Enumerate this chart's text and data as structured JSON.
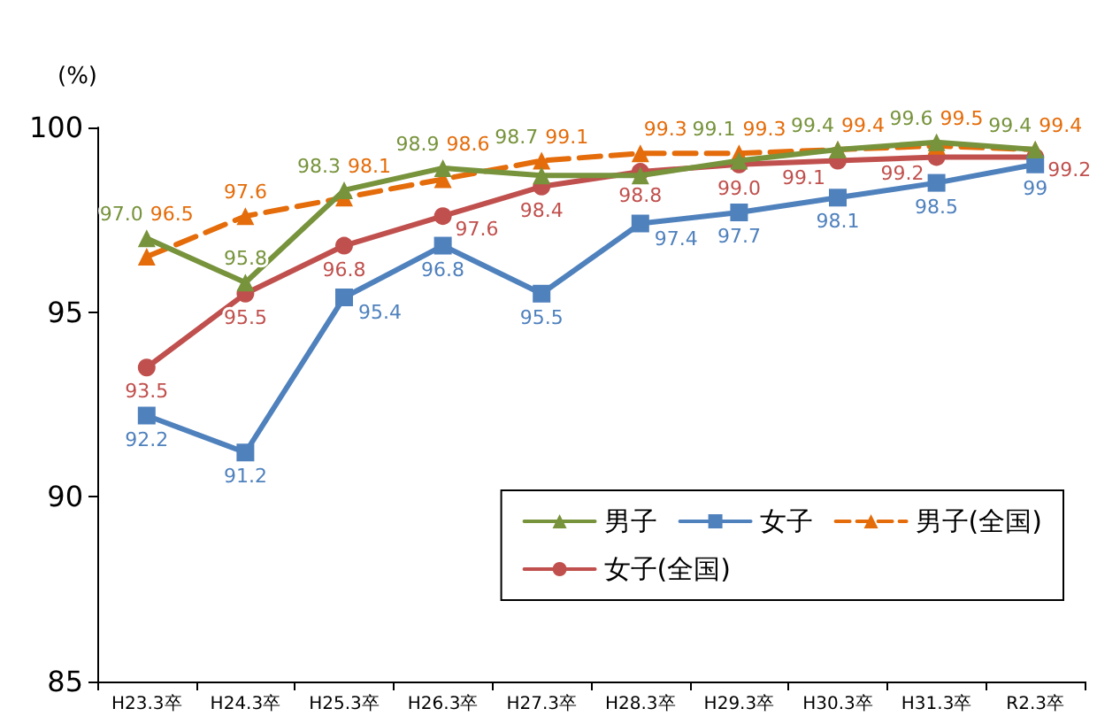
{
  "chart_data": {
    "type": "line",
    "ylabel": "(%)",
    "categories": [
      "H23.3卒",
      "H24.3卒",
      "H25.3卒",
      "H26.3卒",
      "H27.3卒",
      "H28.3卒",
      "H29.3卒",
      "H30.3卒",
      "H31.3卒",
      "R2.3卒"
    ],
    "series": [
      {
        "name": "男子",
        "color": "#77933c",
        "marker": "triangle",
        "line_style": "solid",
        "values": [
          97.0,
          95.8,
          98.3,
          98.9,
          98.7,
          98.7,
          99.1,
          99.4,
          99.6,
          99.4
        ],
        "value_labels": [
          "97.0",
          "95.8",
          "98.3",
          "98.9",
          "98.7",
          null,
          "99.1",
          "99.4",
          "99.6",
          "99.4"
        ]
      },
      {
        "name": "女子",
        "color": "#4f81bd",
        "marker": "square",
        "line_style": "solid",
        "values": [
          92.2,
          91.2,
          95.4,
          96.8,
          95.5,
          97.4,
          97.7,
          98.1,
          98.5,
          99
        ],
        "value_labels": [
          "92.2",
          "91.2",
          "95.4",
          "96.8",
          "95.5",
          "97.4",
          "97.7",
          "98.1",
          "98.5",
          "99"
        ]
      },
      {
        "name": "男子(全国)",
        "color": "#e46c0a",
        "marker": "triangle",
        "line_style": "dashed",
        "values": [
          96.5,
          97.6,
          98.1,
          98.6,
          99.1,
          99.3,
          99.3,
          99.4,
          99.5,
          99.4
        ],
        "value_labels": [
          "96.5",
          "97.6",
          "98.1",
          "98.6",
          "99.1",
          "99.3",
          "99.3",
          "99.4",
          "99.5",
          "99.4"
        ]
      },
      {
        "name": "女子(全国)",
        "color": "#c0504d",
        "marker": "circle",
        "line_style": "solid",
        "values": [
          93.5,
          95.5,
          96.8,
          97.6,
          98.4,
          98.8,
          99.0,
          99.1,
          99.2,
          99.2
        ],
        "value_labels": [
          "93.5",
          "95.5",
          "96.8",
          "97.6",
          "98.4",
          "98.8",
          "99.0",
          "99.1",
          "99.2",
          "99.2"
        ]
      }
    ],
    "ylim": [
      85,
      100
    ],
    "yticks": [
      85,
      90,
      95,
      100
    ],
    "grid": false,
    "legend": "bottom right"
  }
}
